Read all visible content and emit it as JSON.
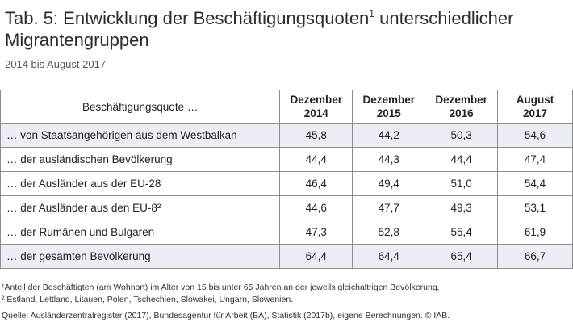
{
  "title": "Tab. 5: Entwicklung der Beschäftigungsquoten",
  "title_sup": "1",
  "title_rest": " unterschiedlicher Migrantengruppen",
  "subtitle": "2014 bis August 2017",
  "table": {
    "label_header": "Beschäftigungsquote …",
    "columns": [
      {
        "line1": "Dezember",
        "line2": "2014"
      },
      {
        "line1": "Dezember",
        "line2": "2015"
      },
      {
        "line1": "Dezember",
        "line2": "2016"
      },
      {
        "line1": "August",
        "line2": "2017"
      }
    ],
    "rows": [
      {
        "label": "… von Staatsangehörigen aus dem Westbalkan",
        "values": [
          "45,8",
          "44,2",
          "50,3",
          "54,6"
        ]
      },
      {
        "label": "… der ausländischen Bevölkerung",
        "values": [
          "44,4",
          "44,3",
          "44,4",
          "47,4"
        ]
      },
      {
        "label": "… der Ausländer aus der EU-28",
        "values": [
          "46,4",
          "49,4",
          "51,0",
          "54,4"
        ]
      },
      {
        "label": "… der Ausländer aus den EU-8²",
        "values": [
          "44,6",
          "47,7",
          "49,3",
          "53,1"
        ]
      },
      {
        "label": "… der Rumänen und Bulgaren",
        "values": [
          "47,3",
          "52,8",
          "55,4",
          "61,9"
        ]
      },
      {
        "label": "… der gesamten Bevölkerung",
        "values": [
          "64,4",
          "64,4",
          "65,4",
          "66,7"
        ]
      }
    ],
    "shaded_row_color": "#eaedf3"
  },
  "footnotes": {
    "note1": "¹Anteil der Beschäftigten (am Wohnort) im Alter von 15 bis unter 65 Jahren an der jeweils gleichaltrigen Bevölkerung.",
    "note2": "² Estland, Lettland, Litauen, Polen, Tschechien, Slowakei, Ungarn, Slowenien.",
    "source": "Quelle: Ausländerzentralregister (2017), Bundesagentur für Arbeit (BA), Statistik (2017b), eigene Berechnungen. © IAB."
  }
}
